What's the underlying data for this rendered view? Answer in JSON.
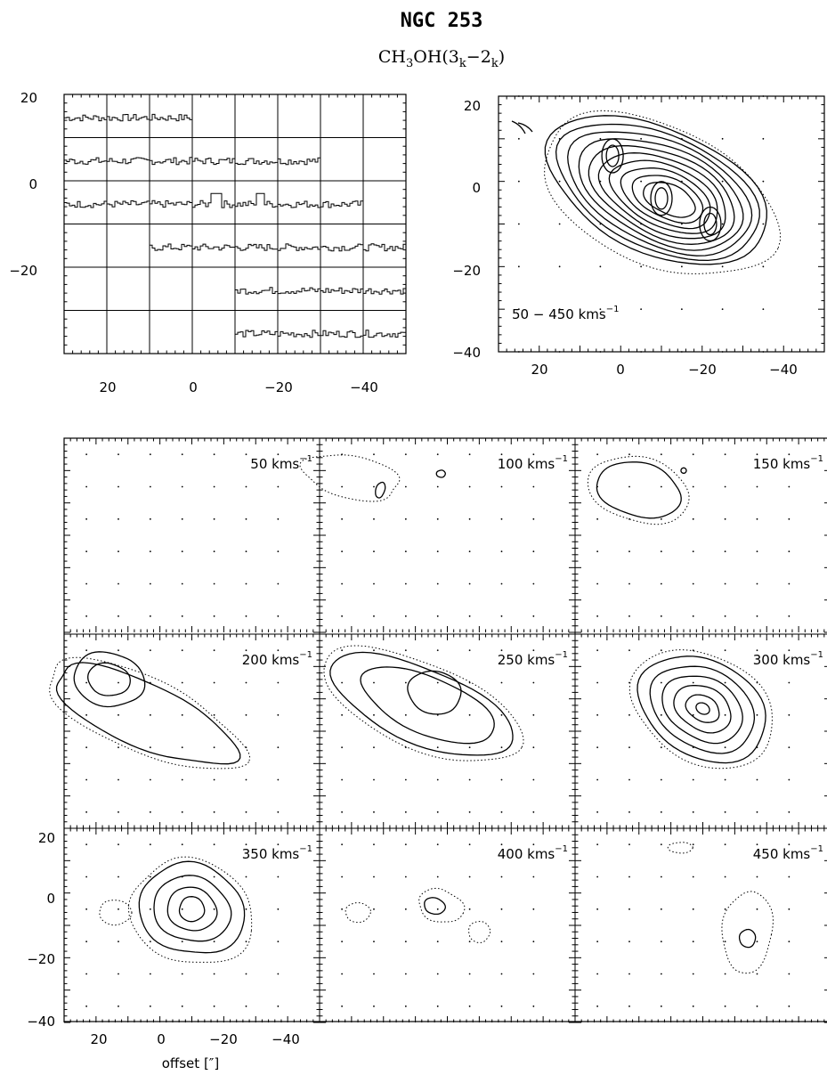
{
  "title": "NGC 253",
  "subtitle": {
    "mol": "CH",
    "s1": "3",
    "mid": "OH(3",
    "s2": "k",
    "mid2": "−2",
    "s3": "k",
    "end": ")"
  },
  "chart_data": [
    {
      "type": "spectra-grid",
      "name": "spectral map",
      "xlim": [
        30,
        -50
      ],
      "ylim": [
        -40,
        20
      ],
      "x_ticks": [
        "20",
        "0",
        "−20",
        "−40"
      ],
      "y_ticks": [
        "20",
        "0",
        "−20"
      ],
      "rows": [
        {
          "y_center": 15,
          "x_from": 30,
          "x_to": 0
        },
        {
          "y_center": 5,
          "x_from": 30,
          "x_to": -30
        },
        {
          "y_center": -5,
          "x_from": 30,
          "x_to": -40
        },
        {
          "y_center": -15,
          "x_from": 10,
          "x_to": -50
        },
        {
          "y_center": -25,
          "x_from": -10,
          "x_to": -50
        },
        {
          "y_center": -35,
          "x_from": -10,
          "x_to": -50
        }
      ],
      "grid_x": [
        20,
        10,
        0,
        -10,
        -20,
        -30,
        -40
      ],
      "grid_y": [
        10,
        0,
        -10,
        -20,
        -30
      ]
    },
    {
      "type": "contour",
      "name": "integrated intensity",
      "label": "50 − 450 kms",
      "label_exp": "−1",
      "xlim": [
        30,
        -50
      ],
      "ylim": [
        -40,
        20
      ],
      "x_ticks": [
        "20",
        "0",
        "−20",
        "−40"
      ],
      "y_ticks": [
        "20",
        "0",
        "−20",
        "−40"
      ],
      "peaks": [
        [
          2,
          6
        ],
        [
          -10,
          -4
        ],
        [
          -22,
          -10
        ]
      ],
      "levels": 14
    },
    {
      "type": "channel-maps",
      "xlim": [
        30,
        -50
      ],
      "ylim": [
        -40,
        20
      ],
      "x_ticks": [
        "20",
        "0",
        "−20",
        "−40"
      ],
      "y_ticks": [
        "20",
        "0",
        "−20",
        "−40"
      ],
      "xlabel": "offset [″]",
      "unit": "kms",
      "unit_exp": "−1",
      "channels": [
        {
          "velocity": "50"
        },
        {
          "velocity": "100"
        },
        {
          "velocity": "150"
        },
        {
          "velocity": "200"
        },
        {
          "velocity": "250"
        },
        {
          "velocity": "300"
        },
        {
          "velocity": "350"
        },
        {
          "velocity": "400"
        },
        {
          "velocity": "450"
        }
      ]
    }
  ]
}
